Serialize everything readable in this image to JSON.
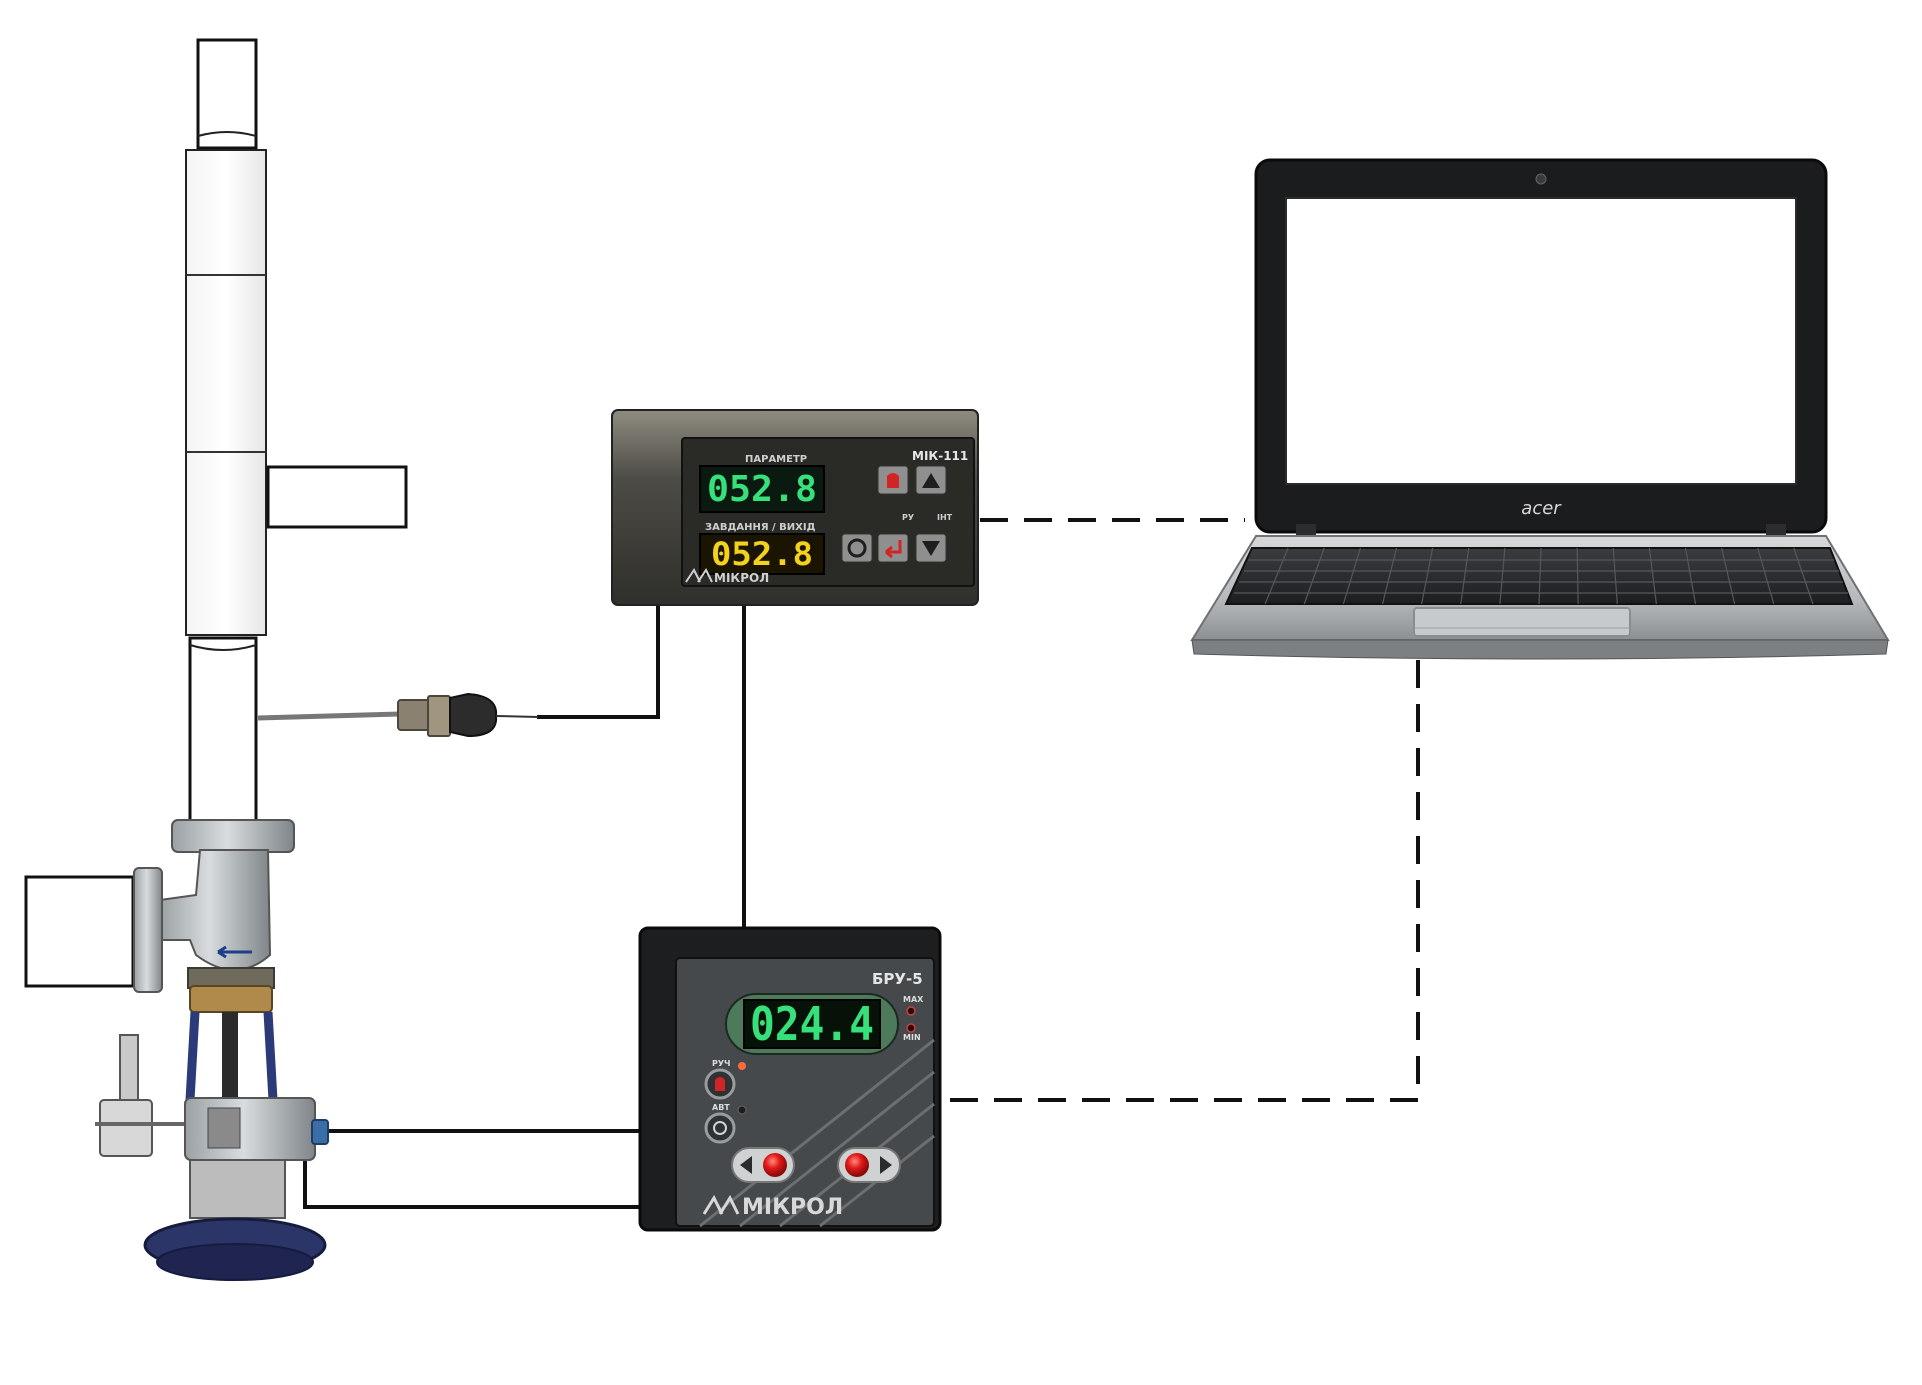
{
  "mik111": {
    "model": "МІК-111",
    "label_parameter": "ПАРАМЕТР",
    "label_setpoint_output": "ЗАВДАННЯ / ВИХІД",
    "display_top": "052.8",
    "display_bottom": "052.8",
    "label_ru": "РУ",
    "label_int": "ІНТ",
    "brand": "МІКРОЛ"
  },
  "bru5": {
    "model": "БРУ-5",
    "display": "024.4",
    "label_max": "MAX",
    "label_min": "MIN",
    "label_manual": "РУЧ",
    "label_auto": "АВТ",
    "brand": "МІКРОЛ"
  },
  "laptop": {
    "brand": "acer"
  },
  "colors": {
    "lcd_green": "#36e07a",
    "lcd_yellow": "#f2d21a",
    "button_red": "#e01818",
    "wire": "#111111"
  }
}
